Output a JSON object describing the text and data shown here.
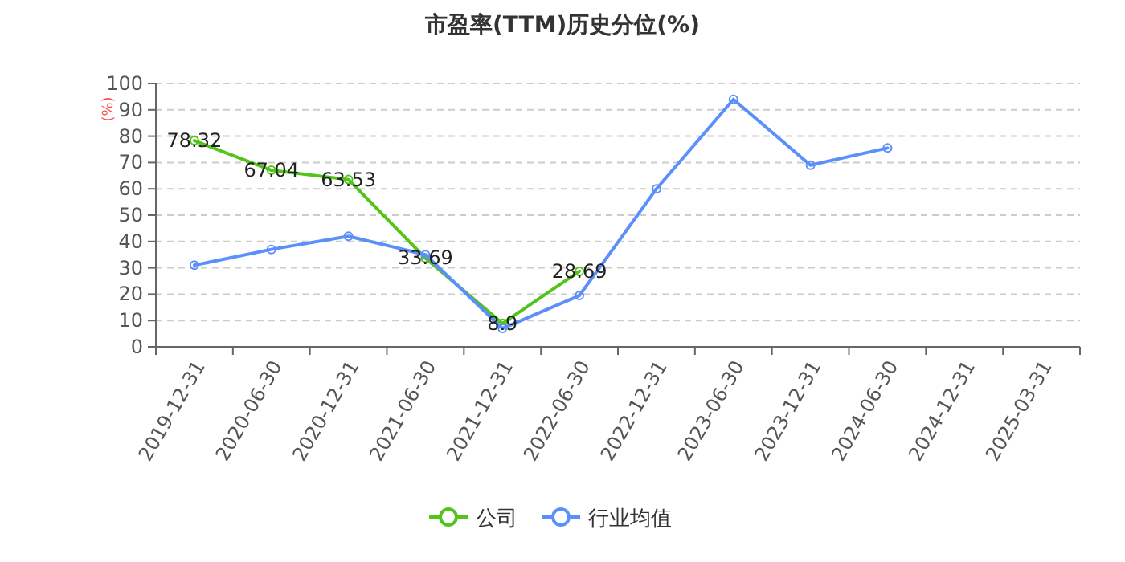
{
  "chart_data": {
    "type": "line",
    "title": "市盈率(TTM)历史分位(%)",
    "ylabel": "(%)",
    "categories": [
      "2019-12-31",
      "2020-06-30",
      "2020-12-31",
      "2021-06-30",
      "2021-12-31",
      "2022-06-30",
      "2022-12-31",
      "2023-06-30",
      "2023-12-31",
      "2024-06-30",
      "2024-12-31",
      "2025-03-31"
    ],
    "series": [
      {
        "name": "公司",
        "color": "#52c41a",
        "values": [
          78.32,
          67.04,
          63.53,
          33.69,
          8.9,
          28.69,
          null,
          null,
          null,
          null,
          null,
          null
        ],
        "data_labels": true
      },
      {
        "name": "行业均值",
        "color": "#5b8ff9",
        "values": [
          31,
          37,
          42,
          35,
          7,
          19.5,
          60,
          94,
          69,
          75.5,
          null,
          null
        ]
      }
    ],
    "ylim": [
      0,
      100
    ],
    "yticks": [
      0,
      10,
      20,
      30,
      40,
      50,
      60,
      70,
      80,
      90,
      100
    ],
    "grid": "y",
    "legend": "bottom",
    "marker": "circle",
    "line_style": "solid"
  }
}
